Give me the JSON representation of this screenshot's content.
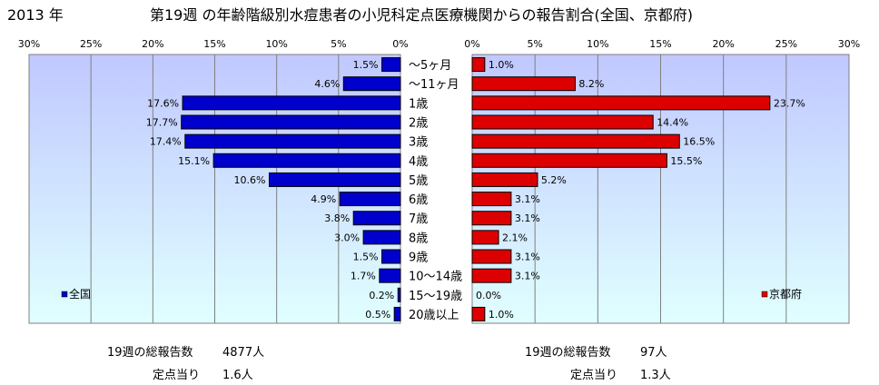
{
  "year_label": "2013 年",
  "title": "第19週 の年齢階級別水痘患者の小児科定点医療機関からの報告割合(全国、京都府)",
  "chart_data": [
    {
      "type": "bar",
      "orientation": "horizontal",
      "x_direction": "reversed",
      "series": [
        {
          "name": "全国",
          "values": [
            1.5,
            4.6,
            17.6,
            17.7,
            17.4,
            15.1,
            10.6,
            4.9,
            3.8,
            3.0,
            1.5,
            1.7,
            0.2,
            0.5
          ]
        }
      ],
      "value_labels": [
        "1.5%",
        "4.6%",
        "17.6%",
        "17.7%",
        "17.4%",
        "15.1%",
        "10.6%",
        "4.9%",
        "3.8%",
        "3.0%",
        "1.5%",
        "1.7%",
        "0.2%",
        "0.5%"
      ],
      "xlim": [
        0,
        30
      ],
      "ticks": [
        "30%",
        "25%",
        "20%",
        "15%",
        "10%",
        "5%",
        "0%"
      ],
      "legend": "bottom-left",
      "color": "#0000cc"
    },
    {
      "type": "bar",
      "orientation": "horizontal",
      "series": [
        {
          "name": "京都府",
          "values": [
            1.0,
            8.2,
            23.7,
            14.4,
            16.5,
            15.5,
            5.2,
            3.1,
            3.1,
            2.1,
            3.1,
            3.1,
            0.0,
            1.0
          ]
        }
      ],
      "value_labels": [
        "1.0%",
        "8.2%",
        "23.7%",
        "14.4%",
        "16.5%",
        "15.5%",
        "5.2%",
        "3.1%",
        "3.1%",
        "2.1%",
        "3.1%",
        "3.1%",
        "0.0%",
        "1.0%"
      ],
      "xlim": [
        0,
        30
      ],
      "ticks": [
        "0%",
        "5%",
        "10%",
        "15%",
        "20%",
        "25%",
        "30%"
      ],
      "legend": "bottom-right",
      "color": "#dd0000"
    }
  ],
  "categories": [
    "～5ヶ月",
    "～11ヶ月",
    "1歳",
    "2歳",
    "3歳",
    "4歳",
    "5歳",
    "6歳",
    "7歳",
    "8歳",
    "9歳",
    "10～14歳",
    "15～19歳",
    "20歳以上"
  ],
  "colors": {
    "national": "#0000cc",
    "kyoto": "#dd0000",
    "plot_top": "#c0c8ff",
    "plot_bottom": "#e0ffff"
  },
  "stats": {
    "national": {
      "reports_label": "19週の総報告数",
      "reports_value": "4877人",
      "per_site_label": "定点当り",
      "per_site_value": "1.6人"
    },
    "kyoto": {
      "reports_label": "19週の総報告数",
      "reports_value": "97人",
      "per_site_label": "定点当り",
      "per_site_value": "1.3人"
    }
  }
}
